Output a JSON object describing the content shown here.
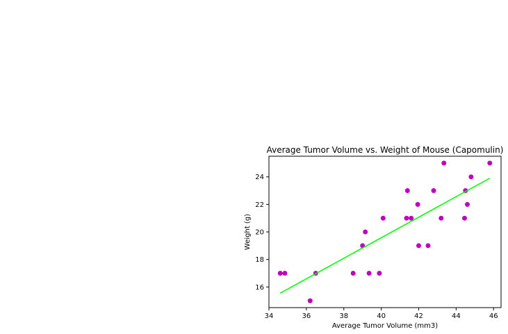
{
  "chart_data": {
    "type": "scatter",
    "title": "Average Tumor Volume vs. Weight of Mouse (Capomulin)",
    "xlabel": "Average Tumor Volume (mm3)",
    "ylabel": "Weight (g)",
    "xlim": [
      34,
      46.4
    ],
    "ylim": [
      14.5,
      25.5
    ],
    "xticks": [
      34,
      36,
      38,
      40,
      42,
      44,
      46
    ],
    "yticks": [
      16,
      18,
      20,
      22,
      24
    ],
    "grid": false,
    "marker_color": "#c000c0",
    "line_color": "#00ff00",
    "points": [
      {
        "x": 34.6,
        "y": 17
      },
      {
        "x": 34.85,
        "y": 17
      },
      {
        "x": 36.2,
        "y": 15
      },
      {
        "x": 36.5,
        "y": 17
      },
      {
        "x": 38.5,
        "y": 17
      },
      {
        "x": 39.0,
        "y": 19
      },
      {
        "x": 39.15,
        "y": 20
      },
      {
        "x": 39.35,
        "y": 17
      },
      {
        "x": 39.9,
        "y": 17
      },
      {
        "x": 40.1,
        "y": 21
      },
      {
        "x": 41.35,
        "y": 21
      },
      {
        "x": 41.4,
        "y": 23
      },
      {
        "x": 41.6,
        "y": 21
      },
      {
        "x": 41.95,
        "y": 22
      },
      {
        "x": 42.0,
        "y": 19
      },
      {
        "x": 42.5,
        "y": 19
      },
      {
        "x": 42.8,
        "y": 23
      },
      {
        "x": 43.2,
        "y": 21
      },
      {
        "x": 43.35,
        "y": 25
      },
      {
        "x": 44.45,
        "y": 21
      },
      {
        "x": 44.5,
        "y": 23
      },
      {
        "x": 44.6,
        "y": 22
      },
      {
        "x": 44.8,
        "y": 24
      },
      {
        "x": 45.8,
        "y": 25
      }
    ],
    "regression": {
      "x": [
        34.6,
        45.8
      ],
      "y": [
        15.55,
        23.9
      ]
    }
  }
}
